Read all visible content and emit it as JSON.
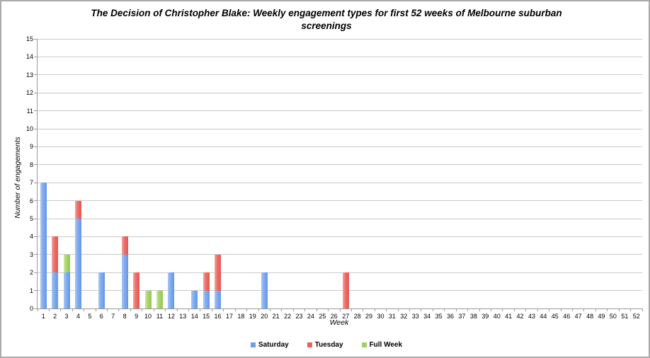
{
  "chart_data": {
    "type": "bar",
    "stacked": true,
    "title": "The Decision of Christopher Blake: Weekly engagement types for first 52 weeks of Melbourne suburban screenings",
    "xlabel": "Week",
    "ylabel": "Number of engagements",
    "ylim": [
      0,
      15
    ],
    "ytick_step": 1,
    "grid": "horizontal",
    "legend_position": "bottom",
    "categories": [
      1,
      2,
      3,
      4,
      5,
      6,
      7,
      8,
      9,
      10,
      11,
      12,
      13,
      14,
      15,
      16,
      17,
      18,
      19,
      20,
      21,
      22,
      23,
      24,
      25,
      26,
      27,
      28,
      29,
      30,
      31,
      32,
      33,
      34,
      35,
      36,
      37,
      38,
      39,
      40,
      41,
      42,
      43,
      44,
      45,
      46,
      47,
      48,
      49,
      50,
      51,
      52
    ],
    "series": [
      {
        "name": "Saturday",
        "color": "#6D9EEB",
        "css_class": "seg-saturday",
        "values": [
          7,
          2,
          2,
          5,
          0,
          2,
          0,
          3,
          0,
          0,
          0,
          2,
          0,
          1,
          1,
          1,
          0,
          0,
          0,
          2,
          0,
          0,
          0,
          0,
          0,
          0,
          0,
          0,
          0,
          0,
          0,
          0,
          0,
          0,
          0,
          0,
          0,
          0,
          0,
          0,
          0,
          0,
          0,
          0,
          0,
          0,
          0,
          0,
          0,
          0,
          0,
          0
        ]
      },
      {
        "name": "Tuesday",
        "color": "#E8625D",
        "css_class": "seg-tuesday",
        "values": [
          0,
          2,
          0,
          1,
          0,
          0,
          0,
          1,
          2,
          0,
          0,
          0,
          0,
          0,
          1,
          2,
          0,
          0,
          0,
          0,
          0,
          0,
          0,
          0,
          0,
          0,
          2,
          0,
          0,
          0,
          0,
          0,
          0,
          0,
          0,
          0,
          0,
          0,
          0,
          0,
          0,
          0,
          0,
          0,
          0,
          0,
          0,
          0,
          0,
          0,
          0,
          0
        ]
      },
      {
        "name": "Full Week",
        "color": "#A2D05E",
        "css_class": "seg-fullweek",
        "values": [
          0,
          0,
          1,
          0,
          0,
          0,
          0,
          0,
          0,
          1,
          1,
          0,
          0,
          0,
          0,
          0,
          0,
          0,
          0,
          0,
          0,
          0,
          0,
          0,
          0,
          0,
          0,
          0,
          0,
          0,
          0,
          0,
          0,
          0,
          0,
          0,
          0,
          0,
          0,
          0,
          0,
          0,
          0,
          0,
          0,
          0,
          0,
          0,
          0,
          0,
          0,
          0
        ]
      }
    ]
  }
}
